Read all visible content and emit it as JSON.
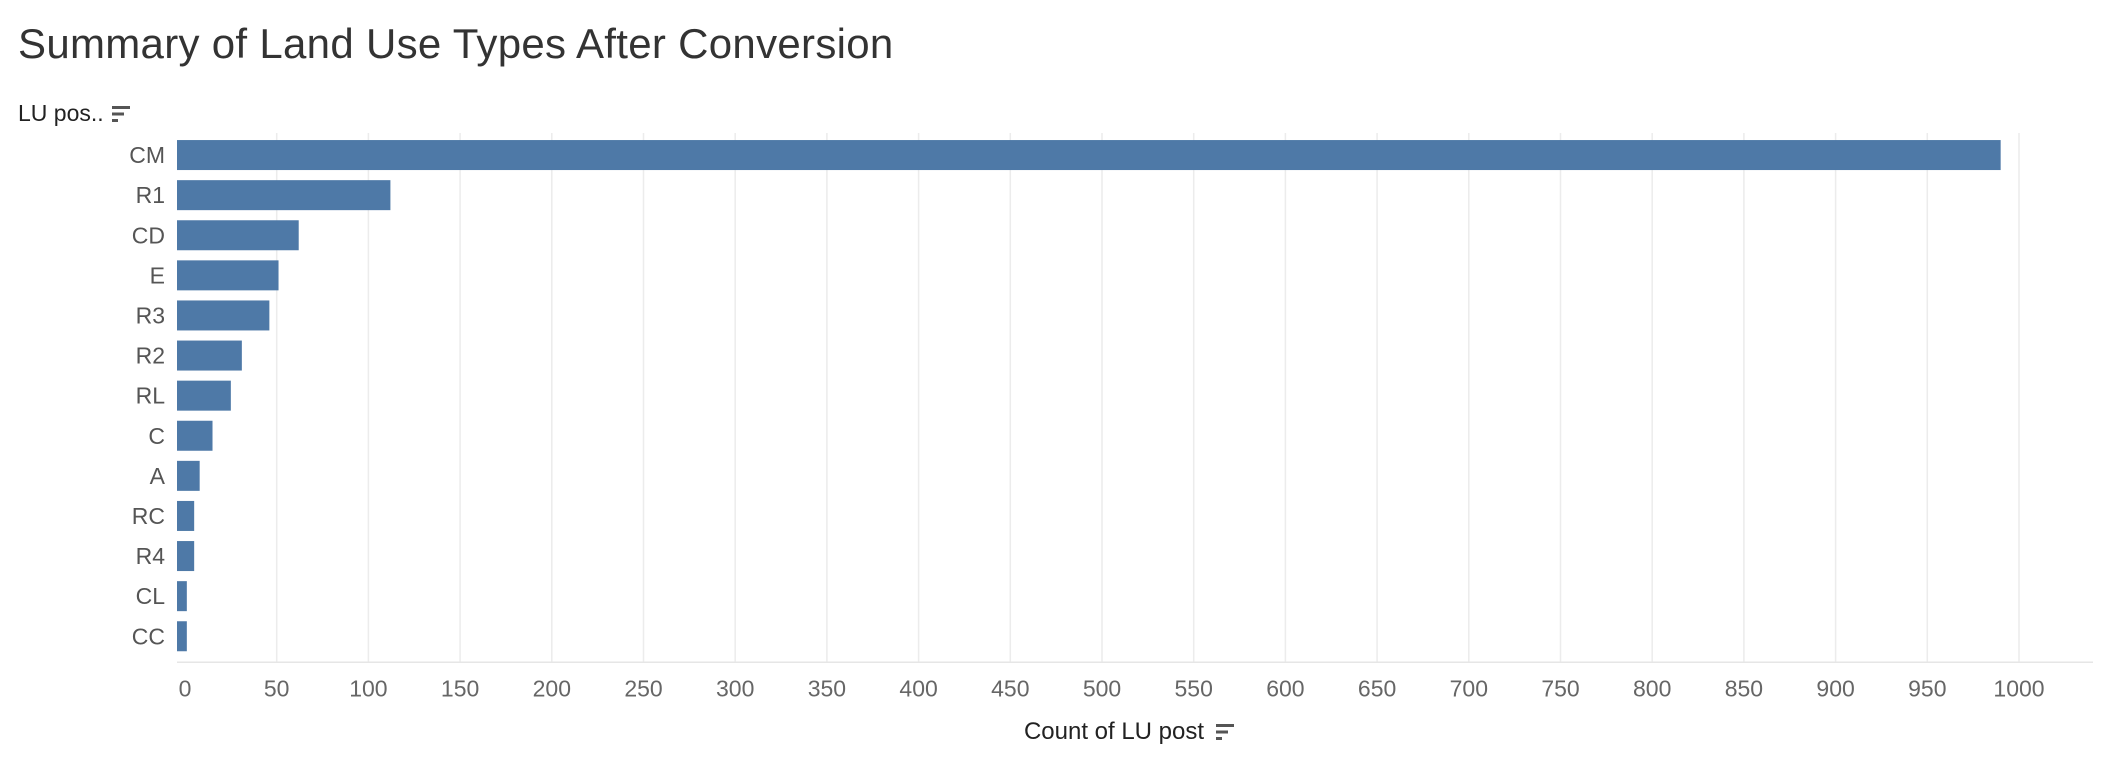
{
  "chart_data": {
    "type": "bar",
    "orientation": "horizontal",
    "title": "Summary of Land Use Types After Conversion",
    "ylabel": "LU pos..",
    "xlabel": "Count of LU post",
    "categories": [
      "CM",
      "R1",
      "CD",
      "E",
      "R3",
      "R2",
      "RL",
      "C",
      "A",
      "RC",
      "R4",
      "CL",
      "CC"
    ],
    "values": [
      990,
      112,
      62,
      51,
      46,
      31,
      25,
      15,
      8,
      5,
      5,
      1,
      1
    ],
    "xlim": [
      0,
      1000
    ],
    "xticks": [
      0,
      50,
      100,
      150,
      200,
      250,
      300,
      350,
      400,
      450,
      500,
      550,
      600,
      650,
      700,
      750,
      800,
      850,
      900,
      950,
      1000
    ],
    "grid": true,
    "legend": "none",
    "bar_color": "#4e79a7"
  }
}
